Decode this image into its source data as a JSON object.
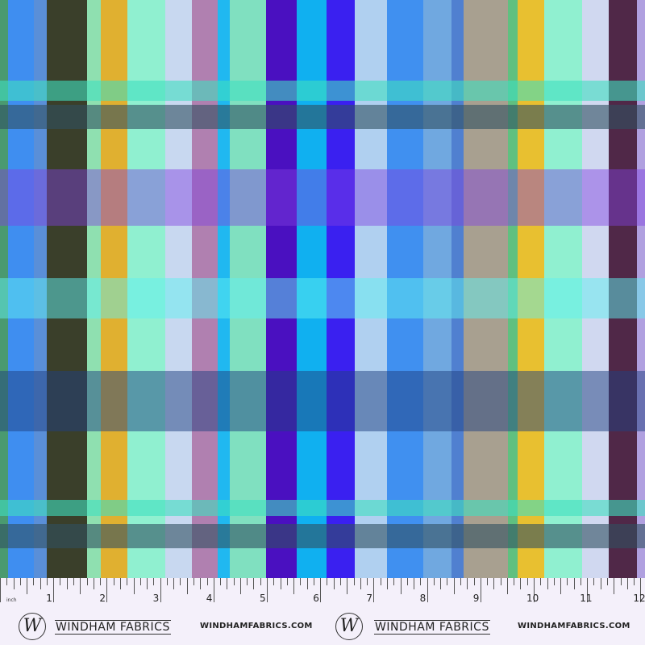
{
  "fabric": {
    "column_colors": [
      "#4a9a70",
      "#3f8ef0",
      "#5a8fd8",
      "#3a3f2a",
      "#8fe0b0",
      "#e0b030",
      "#90f0d0",
      "#c8d8f0",
      "#b080b0",
      "#20b8f0",
      "#80e0c0",
      "#4a10c0",
      "#10b0f0",
      "#3a20f0",
      "#b0d0f0",
      "#4090f0",
      "#70a8e0",
      "#5080d0",
      "#a8a090",
      "#60c080",
      "#e8c030",
      "#90f0d0",
      "#d0d8f0",
      "#502848",
      "#b0a0e0"
    ],
    "band_colors": [
      "#40e0c0",
      "#305060",
      "#8040e0",
      "#60f0f0",
      "#204080",
      "#40e0c0",
      "#305060"
    ]
  },
  "ruler": {
    "unit_label": "inch",
    "numbers": [
      "1",
      "2",
      "3",
      "4",
      "5",
      "6",
      "7",
      "8",
      "9",
      "10",
      "11",
      "12"
    ],
    "brand": "WINDHAM FABRICS",
    "brand_logo_letter": "W",
    "url": "WINDHAMFABRICS.COM"
  }
}
